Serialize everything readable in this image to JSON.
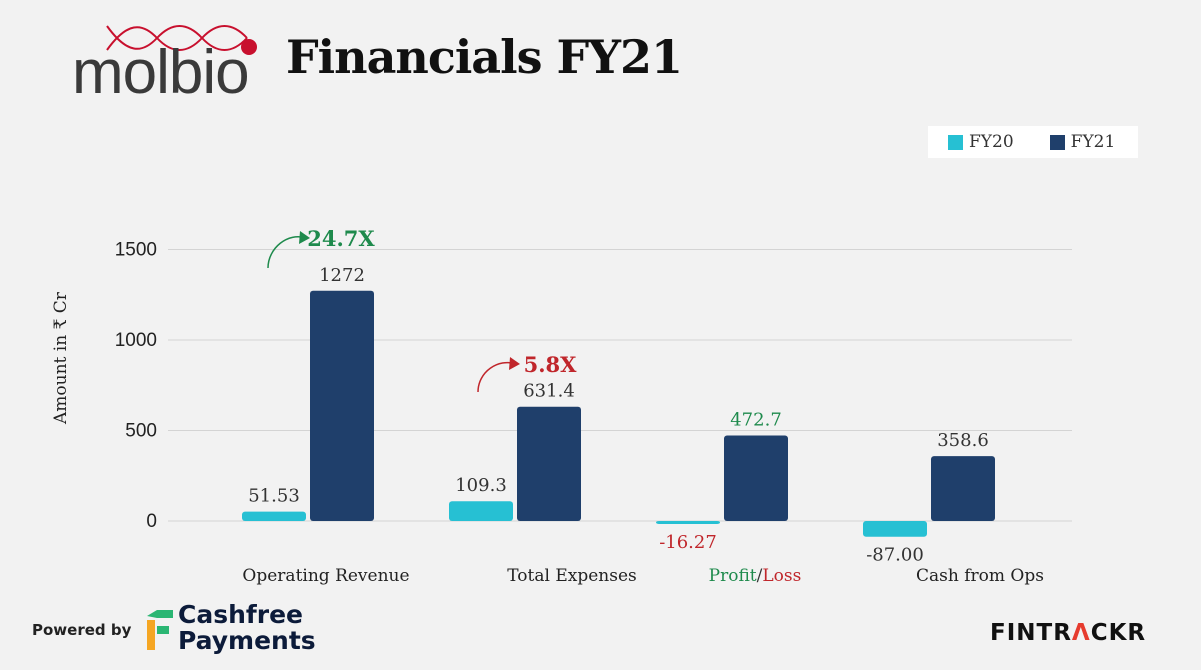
{
  "header": {
    "logo_text": "molbio",
    "title": "Financials FY21"
  },
  "colors": {
    "fy20": "#26c0d3",
    "fy21": "#1f3f6b",
    "growth_good": "#1e8a4c",
    "growth_bad": "#c0262b",
    "logo_red": "#c8102e"
  },
  "chart_data": {
    "type": "bar",
    "categories": [
      "Operating Revenue",
      "Total Expenses",
      "Profit/Loss",
      "Cash from Ops"
    ],
    "category_label_parts": {
      "profit": "Profit",
      "sep": "/",
      "loss": "Loss"
    },
    "series": [
      {
        "name": "FY20",
        "values": [
          51.53,
          109.3,
          -16.27,
          -87.0
        ],
        "labels": [
          "51.53",
          "109.3",
          "-16.27",
          "-87.00"
        ]
      },
      {
        "name": "FY21",
        "values": [
          1272,
          631.4,
          472.7,
          358.6
        ],
        "labels": [
          "1272",
          "631.4",
          "472.7",
          "358.6"
        ]
      }
    ],
    "ylabel": "Amount in ₹ Cr",
    "ylim": [
      -100,
      1550
    ],
    "yticks": [
      0,
      500,
      1000,
      1500
    ],
    "legend_position": "top-right",
    "grid": true,
    "annotations": [
      {
        "category": "Operating Revenue",
        "text": "24.7X",
        "tone": "good"
      },
      {
        "category": "Total Expenses",
        "text": "5.8X",
        "tone": "bad"
      }
    ]
  },
  "footer": {
    "powered_by": "Powered by",
    "cashfree_line1": "Cashfree",
    "cashfree_line2": "Payments",
    "fintrackr_a": "FINTR",
    "fintrackr_b": "Λ",
    "fintrackr_c": "CKR"
  }
}
